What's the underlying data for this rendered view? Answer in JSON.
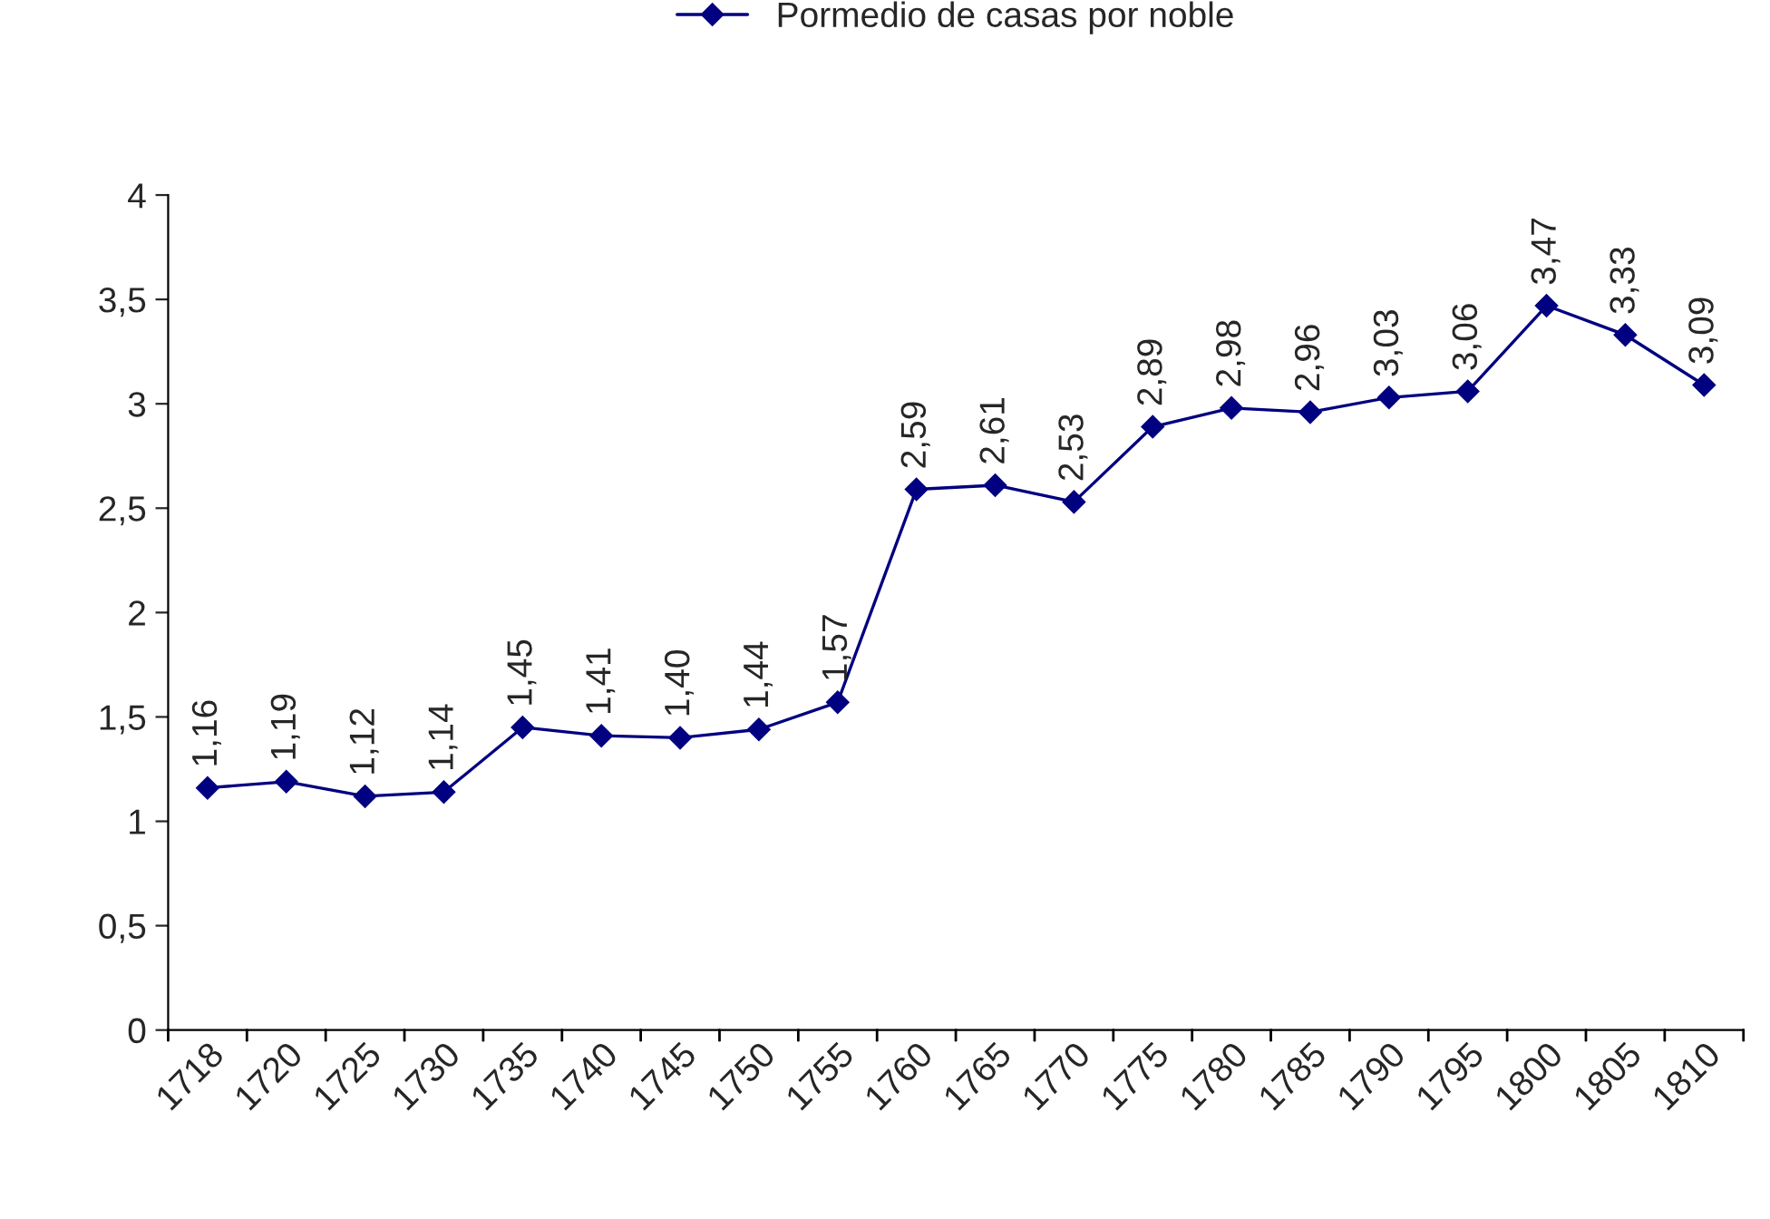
{
  "chart_data": {
    "type": "line",
    "categories": [
      "1718",
      "1720",
      "1725",
      "1730",
      "1735",
      "1740",
      "1745",
      "1750",
      "1755",
      "1760",
      "1765",
      "1770",
      "1775",
      "1780",
      "1785",
      "1790",
      "1795",
      "1800",
      "1805",
      "1810"
    ],
    "series": [
      {
        "name": "Pormedio de casas por noble",
        "color": "#000080",
        "values": [
          1.16,
          1.19,
          1.12,
          1.14,
          1.45,
          1.41,
          1.4,
          1.44,
          1.57,
          2.59,
          2.61,
          2.53,
          2.89,
          2.98,
          2.96,
          3.03,
          3.06,
          3.47,
          3.33,
          3.09
        ],
        "value_labels": [
          "1,16",
          "1,19",
          "1,12",
          "1,14",
          "1,45",
          "1,41",
          "1,40",
          "1,44",
          "1,57",
          "2,59",
          "2,61",
          "2,53",
          "2,89",
          "2,98",
          "2,96",
          "3,03",
          "3,06",
          "3,47",
          "3,33",
          "3,09"
        ]
      }
    ],
    "ylim": [
      0,
      4
    ],
    "yticks": [
      0,
      {
        "value": 0.5,
        "label": "0,5"
      },
      1,
      {
        "value": 1.5,
        "label": "1,5"
      },
      2,
      {
        "value": 2.5,
        "label": "2,5"
      },
      3,
      {
        "value": 3.5,
        "label": "3,5"
      },
      4
    ],
    "marker": "diamond",
    "line_style": "solid",
    "grid": false,
    "legend": "top"
  }
}
